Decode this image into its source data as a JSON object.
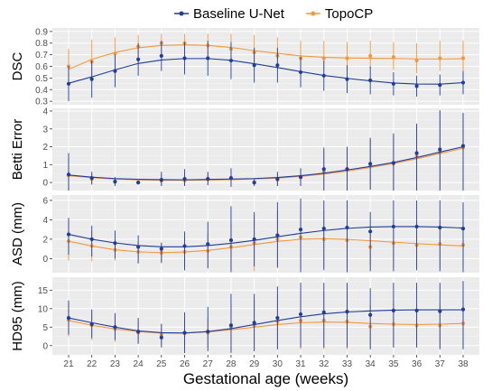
{
  "legend": {
    "placement": "top-center",
    "series": [
      {
        "name": "Baseline U-Net",
        "color": "#1f3d99"
      },
      {
        "name": "TopoCP",
        "color": "#f5963c"
      }
    ]
  },
  "xlabel": "Gestational age (weeks)",
  "panel_background": "#ebebeb",
  "grid": true,
  "chart_data": [
    {
      "type": "line",
      "ylabel": "DSC",
      "x": [
        21,
        22,
        23,
        24,
        25,
        26,
        27,
        28,
        29,
        30,
        31,
        32,
        33,
        34,
        35,
        36,
        37,
        38
      ],
      "xlim": [
        20.3,
        38.7
      ],
      "ylim": [
        0.27,
        0.93
      ],
      "yticks": [
        0.3,
        0.4,
        0.5,
        0.6,
        0.7,
        0.8,
        0.9
      ],
      "ytick_labels": [
        "0.3",
        "0.4",
        "0.5",
        "0.6",
        "0.7",
        "0.8",
        "0.9"
      ],
      "series": [
        {
          "name": "Baseline U-Net",
          "mean": [
            0.45,
            0.49,
            0.56,
            0.66,
            0.69,
            0.67,
            0.67,
            0.65,
            0.61,
            0.61,
            0.55,
            0.52,
            0.49,
            0.48,
            0.45,
            0.43,
            0.44,
            0.46
          ],
          "err_low": [
            0.3,
            0.33,
            0.42,
            0.52,
            0.56,
            0.53,
            0.52,
            0.49,
            0.46,
            0.46,
            0.42,
            0.39,
            0.37,
            0.36,
            0.35,
            0.34,
            0.35,
            0.36
          ],
          "err_high": [
            0.6,
            0.65,
            0.7,
            0.8,
            0.82,
            0.81,
            0.82,
            0.81,
            0.76,
            0.76,
            0.68,
            0.65,
            0.61,
            0.6,
            0.55,
            0.52,
            0.53,
            0.56
          ],
          "fit": [
            0.455,
            0.51,
            0.57,
            0.625,
            0.655,
            0.667,
            0.667,
            0.652,
            0.623,
            0.59,
            0.555,
            0.522,
            0.497,
            0.475,
            0.457,
            0.448,
            0.447,
            0.46
          ]
        },
        {
          "name": "TopoCP",
          "mean": [
            0.6,
            0.64,
            0.71,
            0.77,
            0.8,
            0.8,
            0.78,
            0.75,
            0.72,
            0.69,
            0.67,
            0.67,
            0.67,
            0.69,
            0.68,
            0.65,
            0.67,
            0.67
          ],
          "err_low": [
            0.45,
            0.48,
            0.58,
            0.66,
            0.69,
            0.68,
            0.66,
            0.63,
            0.6,
            0.57,
            0.55,
            0.56,
            0.56,
            0.58,
            0.57,
            0.54,
            0.56,
            0.56
          ],
          "err_high": [
            0.75,
            0.83,
            0.85,
            0.87,
            0.88,
            0.88,
            0.88,
            0.88,
            0.87,
            0.85,
            0.82,
            0.82,
            0.81,
            0.82,
            0.81,
            0.8,
            0.82,
            0.82
          ],
          "fit": [
            0.575,
            0.66,
            0.72,
            0.76,
            0.78,
            0.785,
            0.78,
            0.763,
            0.735,
            0.712,
            0.69,
            0.678,
            0.672,
            0.67,
            0.668,
            0.664,
            0.663,
            0.666
          ]
        }
      ]
    },
    {
      "type": "line",
      "ylabel": "Betti Error",
      "x": [
        21,
        22,
        23,
        24,
        25,
        26,
        27,
        28,
        29,
        30,
        31,
        32,
        33,
        34,
        35,
        36,
        37,
        38
      ],
      "xlim": [
        20.3,
        38.7
      ],
      "ylim": [
        -0.45,
        4.15
      ],
      "yticks": [
        0,
        1,
        2,
        3,
        4
      ],
      "ytick_labels": [
        "0",
        "1",
        "2",
        "3",
        "4"
      ],
      "series": [
        {
          "name": "Baseline U-Net",
          "mean": [
            0.45,
            0.25,
            0.05,
            0.0,
            0.15,
            0.2,
            0.2,
            0.25,
            0.0,
            0.2,
            0.3,
            0.75,
            0.75,
            1.05,
            1.1,
            1.65,
            1.85,
            2.05
          ],
          "err_low": [
            -0.45,
            -0.1,
            -0.2,
            -0.1,
            -0.2,
            -0.2,
            -0.15,
            -0.25,
            -0.2,
            -0.2,
            -0.2,
            -0.45,
            -0.45,
            -0.4,
            -0.45,
            -0.45,
            -0.45,
            -0.45
          ],
          "err_high": [
            1.65,
            0.6,
            0.3,
            0.1,
            0.6,
            0.75,
            0.6,
            0.8,
            0.2,
            0.6,
            0.8,
            1.95,
            2.0,
            2.5,
            2.75,
            3.3,
            4.05,
            3.9
          ],
          "fit": [
            0.42,
            0.3,
            0.22,
            0.18,
            0.16,
            0.15,
            0.17,
            0.19,
            0.22,
            0.28,
            0.38,
            0.52,
            0.7,
            0.9,
            1.12,
            1.4,
            1.7,
            2.0
          ]
        },
        {
          "name": "TopoCP",
          "mean": [
            0.4,
            0.2,
            0.05,
            0.0,
            0.1,
            0.1,
            0.2,
            0.25,
            0.0,
            0.15,
            0.3,
            0.6,
            0.7,
            0.95,
            1.05,
            1.5,
            1.7,
            1.95
          ],
          "err_low": [
            -0.4,
            -0.15,
            -0.15,
            -0.1,
            -0.2,
            -0.2,
            -0.15,
            -0.2,
            -0.15,
            -0.2,
            -0.2,
            -0.45,
            -0.4,
            -0.4,
            -0.45,
            -0.45,
            -0.45,
            -0.45
          ],
          "err_high": [
            1.3,
            0.5,
            0.25,
            0.1,
            0.45,
            0.5,
            0.55,
            0.7,
            0.15,
            0.5,
            0.75,
            1.8,
            1.85,
            2.4,
            2.65,
            3.2,
            3.95,
            3.8
          ],
          "fit": [
            0.38,
            0.27,
            0.19,
            0.15,
            0.13,
            0.13,
            0.14,
            0.16,
            0.2,
            0.25,
            0.34,
            0.47,
            0.64,
            0.84,
            1.06,
            1.33,
            1.62,
            1.92
          ]
        }
      ]
    },
    {
      "type": "line",
      "ylabel": "ASD (mm)",
      "x": [
        21,
        22,
        23,
        24,
        25,
        26,
        27,
        28,
        29,
        30,
        31,
        32,
        33,
        34,
        35,
        36,
        37,
        38
      ],
      "xlim": [
        20.3,
        38.7
      ],
      "ylim": [
        -1.45,
        6.55
      ],
      "yticks": [
        0,
        2,
        4,
        6
      ],
      "ytick_labels": [
        "0",
        "2",
        "4",
        "6"
      ],
      "series": [
        {
          "name": "Baseline U-Net",
          "mean": [
            2.5,
            2.0,
            1.6,
            1.2,
            1.0,
            1.3,
            1.5,
            1.9,
            2.0,
            2.4,
            3.0,
            3.1,
            3.2,
            2.8,
            3.3,
            3.3,
            3.2,
            3.1
          ],
          "err_low": [
            0.4,
            0.2,
            0.0,
            -0.5,
            -0.4,
            -1.2,
            -1.0,
            -1.4,
            -0.8,
            -0.9,
            -1.4,
            -1.2,
            -1.4,
            -1.3,
            -1.3,
            -1.2,
            -1.3,
            -1.4
          ],
          "err_high": [
            4.2,
            3.4,
            2.9,
            2.4,
            1.6,
            2.8,
            3.8,
            5.4,
            4.8,
            5.8,
            6.2,
            6.0,
            6.0,
            4.8,
            6.0,
            6.0,
            6.0,
            5.8
          ],
          "fit": [
            2.5,
            2.0,
            1.62,
            1.35,
            1.22,
            1.22,
            1.35,
            1.58,
            1.88,
            2.25,
            2.6,
            2.9,
            3.12,
            3.25,
            3.3,
            3.3,
            3.25,
            3.15
          ]
        },
        {
          "name": "TopoCP",
          "mean": [
            1.8,
            1.3,
            0.9,
            0.7,
            0.6,
            0.7,
            0.8,
            1.2,
            1.6,
            2.0,
            2.2,
            2.0,
            1.9,
            1.2,
            1.6,
            1.4,
            1.5,
            1.4
          ],
          "err_low": [
            -0.2,
            -0.3,
            -0.2,
            -0.4,
            -0.5,
            -0.8,
            -1.0,
            -1.2,
            -1.3,
            -1.0,
            -1.1,
            -1.0,
            -1.1,
            -0.8,
            -1.0,
            -1.0,
            -1.0,
            -1.0
          ],
          "err_high": [
            3.8,
            2.9,
            2.0,
            1.8,
            1.7,
            2.2,
            2.6,
            3.6,
            4.5,
            5.0,
            5.5,
            5.0,
            4.9,
            3.2,
            4.2,
            3.8,
            4.0,
            3.8
          ],
          "fit": [
            1.8,
            1.3,
            0.92,
            0.7,
            0.62,
            0.68,
            0.85,
            1.12,
            1.45,
            1.78,
            2.0,
            2.05,
            1.98,
            1.85,
            1.7,
            1.55,
            1.42,
            1.3
          ]
        }
      ]
    },
    {
      "type": "line",
      "ylabel": "HD95 (mm)",
      "x": [
        21,
        22,
        23,
        24,
        25,
        26,
        27,
        28,
        29,
        30,
        31,
        32,
        33,
        34,
        35,
        36,
        37,
        38
      ],
      "xlim": [
        20.3,
        38.7
      ],
      "ylim": [
        -2.5,
        18.5
      ],
      "yticks": [
        0,
        5,
        10,
        15
      ],
      "ytick_labels": [
        "0",
        "5",
        "10",
        "15"
      ],
      "series": [
        {
          "name": "Baseline U-Net",
          "mean": [
            7.5,
            5.8,
            5.0,
            3.8,
            2.2,
            3.5,
            3.8,
            5.5,
            6.2,
            7.5,
            8.5,
            9.0,
            9.2,
            8.3,
            9.5,
            9.5,
            9.3,
            9.8
          ],
          "err_low": [
            3.0,
            2.0,
            1.5,
            0.5,
            -0.5,
            -2.0,
            -1.5,
            -2.0,
            -1.5,
            -1.0,
            -0.5,
            -0.5,
            -0.5,
            -1.0,
            -0.5,
            -0.5,
            -1.0,
            -1.0
          ],
          "err_high": [
            12.2,
            9.8,
            8.8,
            7.5,
            5.8,
            9.0,
            10.5,
            14.0,
            14.0,
            16.0,
            17.0,
            17.0,
            17.0,
            15.5,
            17.0,
            17.0,
            17.0,
            17.5
          ],
          "fit": [
            7.5,
            6.2,
            5.0,
            4.0,
            3.5,
            3.4,
            3.8,
            4.6,
            5.7,
            6.8,
            7.8,
            8.6,
            9.1,
            9.4,
            9.6,
            9.7,
            9.7,
            9.7
          ]
        },
        {
          "name": "TopoCP",
          "mean": [
            7.0,
            5.5,
            4.5,
            3.5,
            3.0,
            3.3,
            3.5,
            4.8,
            5.5,
            6.5,
            6.8,
            6.8,
            6.5,
            5.2,
            5.8,
            5.5,
            5.5,
            6.0
          ],
          "err_low": [
            2.5,
            1.5,
            1.0,
            0.5,
            0.0,
            -0.5,
            -0.5,
            -1.5,
            -1.5,
            -1.0,
            -1.0,
            -1.0,
            -1.0,
            -0.5,
            -0.5,
            -0.5,
            -0.5,
            -0.5
          ],
          "err_high": [
            11.5,
            9.5,
            8.0,
            6.5,
            6.0,
            7.0,
            7.5,
            11.0,
            12.5,
            14.0,
            14.5,
            14.5,
            14.0,
            11.0,
            12.0,
            11.5,
            11.5,
            12.5
          ],
          "fit": [
            6.8,
            5.5,
            4.5,
            3.8,
            3.4,
            3.4,
            3.7,
            4.3,
            5.0,
            5.7,
            6.2,
            6.4,
            6.3,
            6.0,
            5.8,
            5.7,
            5.8,
            6.0
          ]
        }
      ]
    }
  ]
}
